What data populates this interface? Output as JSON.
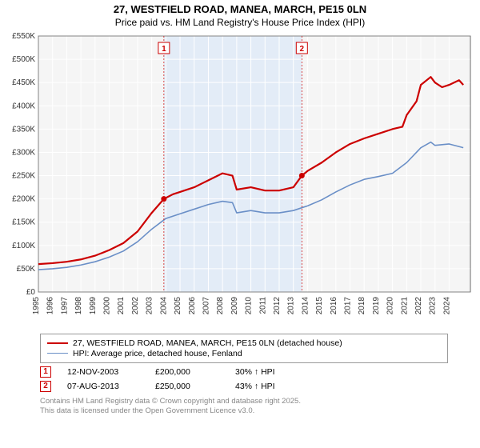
{
  "title_line1": "27, WESTFIELD ROAD, MANEA, MARCH, PE15 0LN",
  "title_line2": "Price paid vs. HM Land Registry's House Price Index (HPI)",
  "chart": {
    "type": "line",
    "plot_bg": "#f5f5f5",
    "shade_bg": "#e3ecf7",
    "grid_color": "#e0e0e0",
    "axis_color": "#666666",
    "tick_font_size": 10,
    "x_years": [
      1995,
      1996,
      1997,
      1998,
      1999,
      2000,
      2001,
      2002,
      2003,
      2004,
      2005,
      2006,
      2007,
      2008,
      2009,
      2010,
      2011,
      2012,
      2013,
      2014,
      2015,
      2016,
      2017,
      2018,
      2019,
      2020,
      2021,
      2022,
      2023,
      2024
    ],
    "x_min": 1995,
    "x_max": 2025.5,
    "y_min": 0,
    "y_max": 550,
    "y_ticks": [
      0,
      50,
      100,
      150,
      200,
      250,
      300,
      350,
      400,
      450,
      500,
      550
    ],
    "y_tick_labels": [
      "£0",
      "£50K",
      "£100K",
      "£150K",
      "£200K",
      "£250K",
      "£300K",
      "£350K",
      "£400K",
      "£450K",
      "£500K",
      "£550K"
    ],
    "shade_start_year": 2003.86,
    "shade_end_year": 2013.6,
    "series": [
      {
        "name": "price_paid",
        "color": "#cc0000",
        "width": 2.2,
        "points": [
          [
            1995,
            60
          ],
          [
            1996,
            62
          ],
          [
            1997,
            65
          ],
          [
            1998,
            70
          ],
          [
            1999,
            78
          ],
          [
            2000,
            90
          ],
          [
            2001,
            105
          ],
          [
            2002,
            130
          ],
          [
            2003,
            170
          ],
          [
            2003.86,
            200
          ],
          [
            2004.5,
            210
          ],
          [
            2005,
            215
          ],
          [
            2006,
            225
          ],
          [
            2007,
            240
          ],
          [
            2008,
            255
          ],
          [
            2008.7,
            250
          ],
          [
            2009,
            220
          ],
          [
            2010,
            225
          ],
          [
            2011,
            218
          ],
          [
            2012,
            218
          ],
          [
            2013,
            225
          ],
          [
            2013.6,
            250
          ],
          [
            2014,
            260
          ],
          [
            2015,
            278
          ],
          [
            2016,
            300
          ],
          [
            2017,
            318
          ],
          [
            2018,
            330
          ],
          [
            2019,
            340
          ],
          [
            2020,
            350
          ],
          [
            2020.7,
            355
          ],
          [
            2021,
            380
          ],
          [
            2021.7,
            410
          ],
          [
            2022,
            445
          ],
          [
            2022.7,
            462
          ],
          [
            2023,
            450
          ],
          [
            2023.5,
            440
          ],
          [
            2024,
            445
          ],
          [
            2024.7,
            455
          ],
          [
            2025,
            445
          ]
        ]
      },
      {
        "name": "hpi",
        "color": "#6a8fc7",
        "width": 1.6,
        "points": [
          [
            1995,
            48
          ],
          [
            1996,
            50
          ],
          [
            1997,
            53
          ],
          [
            1998,
            58
          ],
          [
            1999,
            65
          ],
          [
            2000,
            75
          ],
          [
            2001,
            88
          ],
          [
            2002,
            108
          ],
          [
            2003,
            135
          ],
          [
            2004,
            158
          ],
          [
            2005,
            168
          ],
          [
            2006,
            178
          ],
          [
            2007,
            188
          ],
          [
            2008,
            195
          ],
          [
            2008.7,
            192
          ],
          [
            2009,
            170
          ],
          [
            2010,
            175
          ],
          [
            2011,
            170
          ],
          [
            2012,
            170
          ],
          [
            2013,
            175
          ],
          [
            2014,
            185
          ],
          [
            2015,
            198
          ],
          [
            2016,
            215
          ],
          [
            2017,
            230
          ],
          [
            2018,
            242
          ],
          [
            2019,
            248
          ],
          [
            2020,
            255
          ],
          [
            2021,
            278
          ],
          [
            2022,
            310
          ],
          [
            2022.7,
            322
          ],
          [
            2023,
            315
          ],
          [
            2024,
            318
          ],
          [
            2025,
            310
          ]
        ]
      }
    ],
    "sale_markers": [
      {
        "num": "1",
        "year": 2003.86,
        "price": 200
      },
      {
        "num": "2",
        "year": 2013.6,
        "price": 250
      }
    ]
  },
  "legend": {
    "items": [
      {
        "color": "#cc0000",
        "width": 2.5,
        "label": "27, WESTFIELD ROAD, MANEA, MARCH, PE15 0LN (detached house)"
      },
      {
        "color": "#6a8fc7",
        "width": 1.6,
        "label": "HPI: Average price, detached house, Fenland"
      }
    ]
  },
  "markers_table": [
    {
      "num": "1",
      "date": "12-NOV-2003",
      "price": "£200,000",
      "hpi": "30% ↑ HPI"
    },
    {
      "num": "2",
      "date": "07-AUG-2013",
      "price": "£250,000",
      "hpi": "43% ↑ HPI"
    }
  ],
  "footer_line1": "Contains HM Land Registry data © Crown copyright and database right 2025.",
  "footer_line2": "This data is licensed under the Open Government Licence v3.0."
}
